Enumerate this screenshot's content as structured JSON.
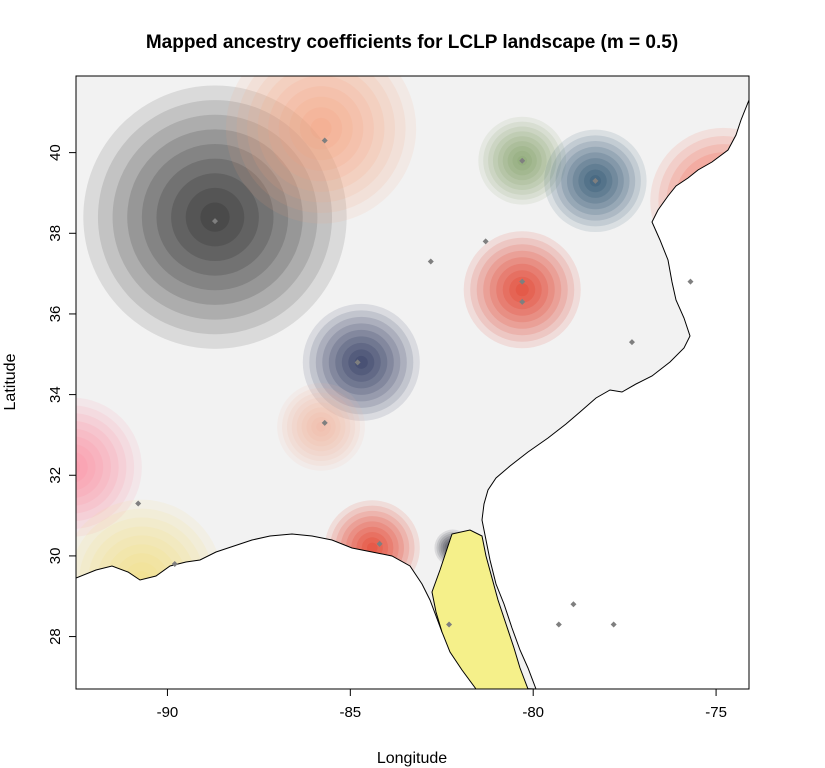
{
  "chart_data": {
    "type": "heatmap",
    "title": "Mapped ancestry coefficients for LCLP landscape (m = 0.5)",
    "xlabel": "Longitude",
    "ylabel": "Latitude",
    "xlim": [
      -92.5,
      -74.1
    ],
    "ylim": [
      26.7,
      41.9
    ],
    "xticks": [
      -90,
      -85,
      -80,
      -75
    ],
    "yticks": [
      28,
      30,
      32,
      34,
      36,
      38,
      40
    ],
    "xtick_labels": [
      "-90",
      "-85",
      "-80",
      "-75"
    ],
    "ytick_labels": [
      "28",
      "30",
      "32",
      "34",
      "36",
      "38",
      "40"
    ],
    "grid": false,
    "background_color": "#f2f2f2",
    "clusters": [
      {
        "lon": -88.7,
        "lat": 38.4,
        "color": "#1e1e1e",
        "spread": 3.6
      },
      {
        "lon": -85.8,
        "lat": 40.6,
        "color": "#f6a27f",
        "spread": 2.6
      },
      {
        "lon": -80.3,
        "lat": 39.8,
        "color": "#7e9f63",
        "spread": 1.2
      },
      {
        "lon": -78.3,
        "lat": 39.3,
        "color": "#1d4767",
        "spread": 1.4
      },
      {
        "lon": -74.8,
        "lat": 38.8,
        "color": "#f54f38",
        "spread": 2.0
      },
      {
        "lon": -80.3,
        "lat": 36.6,
        "color": "#e2321d",
        "spread": 1.6
      },
      {
        "lon": -84.7,
        "lat": 34.8,
        "color": "#1c2755",
        "spread": 1.6
      },
      {
        "lon": -92.6,
        "lat": 32.2,
        "color": "#ff8ba1",
        "spread": 1.9
      },
      {
        "lon": -90.7,
        "lat": 29.4,
        "color": "#f4df7f",
        "spread": 2.2
      },
      {
        "lon": -84.4,
        "lat": 30.2,
        "color": "#e5331d",
        "spread": 1.3
      },
      {
        "lon": -85.8,
        "lat": 33.2,
        "color": "#f3b6a0",
        "spread": 1.2
      },
      {
        "lon": -82.2,
        "lat": 30.2,
        "color": "#1c1f2a",
        "spread": 0.5
      },
      {
        "lon": -81.9,
        "lat": 28.0,
        "color": "#f5f08a",
        "spread": 1.3
      }
    ],
    "sample_points": [
      {
        "lon": -85.7,
        "lat": 40.3
      },
      {
        "lon": -80.3,
        "lat": 39.8
      },
      {
        "lon": -78.3,
        "lat": 39.3
      },
      {
        "lon": -88.7,
        "lat": 38.3
      },
      {
        "lon": -81.3,
        "lat": 37.8
      },
      {
        "lon": -82.8,
        "lat": 37.3
      },
      {
        "lon": -75.7,
        "lat": 36.8
      },
      {
        "lon": -80.3,
        "lat": 36.8
      },
      {
        "lon": -80.3,
        "lat": 36.3
      },
      {
        "lon": -77.3,
        "lat": 35.3
      },
      {
        "lon": -84.8,
        "lat": 34.8
      },
      {
        "lon": -85.7,
        "lat": 33.3
      },
      {
        "lon": -90.8,
        "lat": 31.3
      },
      {
        "lon": -84.2,
        "lat": 30.3
      },
      {
        "lon": -89.8,
        "lat": 29.8
      },
      {
        "lon": -82.3,
        "lat": 28.3
      },
      {
        "lon": -79.3,
        "lat": 28.3
      },
      {
        "lon": -78.9,
        "lat": 28.8
      },
      {
        "lon": -77.8,
        "lat": 28.3
      }
    ],
    "point_color": "#7f7f7f"
  }
}
